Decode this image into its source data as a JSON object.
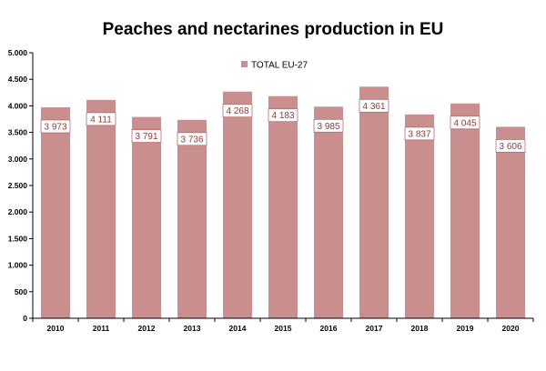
{
  "chart_data": {
    "type": "bar",
    "title": "Peaches and nectarines production in EU",
    "categories": [
      "2010",
      "2011",
      "2012",
      "2013",
      "2014",
      "2015",
      "2016",
      "2017",
      "2018",
      "2019",
      "2020"
    ],
    "series": [
      {
        "name": "TOTAL EU-27",
        "values": [
          3973,
          4111,
          3791,
          3736,
          4268,
          4183,
          3985,
          4361,
          3837,
          4045,
          3606
        ],
        "labels": [
          "3 973",
          "4 111",
          "3 791",
          "3 736",
          "4 268",
          "4 183",
          "3 985",
          "4 361",
          "3 837",
          "4 045",
          "3 606"
        ]
      }
    ],
    "ylim": [
      0,
      5000
    ],
    "yticks": [
      0,
      500,
      1000,
      1500,
      2000,
      2500,
      3000,
      3500,
      4000,
      4500,
      5000
    ],
    "ytick_labels": [
      "0",
      "500",
      "1.000",
      "1.500",
      "2.000",
      "2.500",
      "3.000",
      "3.500",
      "4.000",
      "4.500",
      "5.000"
    ],
    "xlabel": "",
    "ylabel": "",
    "grid": false,
    "legend_position": "top-center",
    "colors": {
      "bar": "#c98f8f",
      "label_border": "#b56b6b",
      "label_text": "#8a3a3a",
      "axis": "#000000"
    }
  }
}
